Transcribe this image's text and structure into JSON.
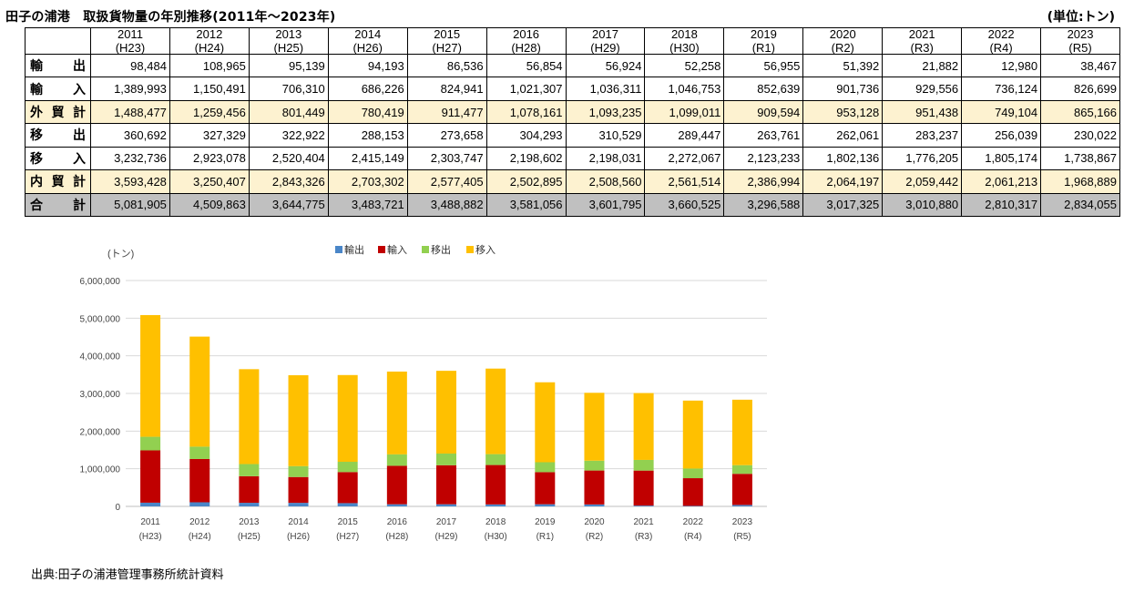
{
  "title": "田子の浦港　取扱貨物量の年別推移(2011年～2023年)",
  "unit": "(単位:トン)",
  "source": "出典:田子の浦港管理事務所統計資料",
  "table": {
    "years": [
      "2011",
      "2012",
      "2013",
      "2014",
      "2015",
      "2016",
      "2017",
      "2018",
      "2019",
      "2020",
      "2021",
      "2022",
      "2023"
    ],
    "eras": [
      "(H23)",
      "(H24)",
      "(H25)",
      "(H26)",
      "(H27)",
      "(H28)",
      "(H29)",
      "(H30)",
      "(R1)",
      "(R2)",
      "(R3)",
      "(R4)",
      "(R5)"
    ],
    "rows": [
      {
        "label": "輸出",
        "values": [
          "98,484",
          "108,965",
          "95,139",
          "94,193",
          "86,536",
          "56,854",
          "56,924",
          "52,258",
          "56,955",
          "51,392",
          "21,882",
          "12,980",
          "38,467"
        ]
      },
      {
        "label": "輸入",
        "values": [
          "1,389,993",
          "1,150,491",
          "706,310",
          "686,226",
          "824,941",
          "1,021,307",
          "1,036,311",
          "1,046,753",
          "852,639",
          "901,736",
          "929,556",
          "736,124",
          "826,699"
        ]
      },
      {
        "label": "外貿計",
        "values": [
          "1,488,477",
          "1,259,456",
          "801,449",
          "780,419",
          "911,477",
          "1,078,161",
          "1,093,235",
          "1,099,011",
          "909,594",
          "953,128",
          "951,438",
          "749,104",
          "865,166"
        ]
      },
      {
        "label": "移出",
        "values": [
          "360,692",
          "327,329",
          "322,922",
          "288,153",
          "273,658",
          "304,293",
          "310,529",
          "289,447",
          "263,761",
          "262,061",
          "283,237",
          "256,039",
          "230,022"
        ]
      },
      {
        "label": "移入",
        "values": [
          "3,232,736",
          "2,923,078",
          "2,520,404",
          "2,415,149",
          "2,303,747",
          "2,198,602",
          "2,198,031",
          "2,272,067",
          "2,123,233",
          "1,802,136",
          "1,776,205",
          "1,805,174",
          "1,738,867"
        ]
      },
      {
        "label": "内貿計",
        "values": [
          "3,593,428",
          "3,250,407",
          "2,843,326",
          "2,703,302",
          "2,577,405",
          "2,502,895",
          "2,508,560",
          "2,561,514",
          "2,386,994",
          "2,064,197",
          "2,059,442",
          "2,061,213",
          "1,968,889"
        ]
      },
      {
        "label": "合計",
        "values": [
          "5,081,905",
          "4,509,863",
          "3,644,775",
          "3,483,721",
          "3,488,882",
          "3,581,056",
          "3,601,795",
          "3,660,525",
          "3,296,588",
          "3,017,325",
          "3,010,880",
          "2,810,317",
          "2,834,055"
        ]
      }
    ]
  },
  "chart_data": {
    "type": "bar",
    "stacked": true,
    "ylabel": "(トン)",
    "ylim": [
      0,
      6000000
    ],
    "yticks": [
      "0",
      "1,000,000",
      "2,000,000",
      "3,000,000",
      "4,000,000",
      "5,000,000",
      "6,000,000"
    ],
    "categories": [
      "2011",
      "2012",
      "2013",
      "2014",
      "2015",
      "2016",
      "2017",
      "2018",
      "2019",
      "2020",
      "2021",
      "2022",
      "2023"
    ],
    "category_sublabels": [
      "(H23)",
      "(H24)",
      "(H25)",
      "(H26)",
      "(H27)",
      "(H28)",
      "(H29)",
      "(H30)",
      "(R1)",
      "(R2)",
      "(R3)",
      "(R4)",
      "(R5)"
    ],
    "legend_position": "top",
    "grid": true,
    "series": [
      {
        "name": "輸出",
        "color": "#4a86c8",
        "values": [
          98484,
          108965,
          95139,
          94193,
          86536,
          56854,
          56924,
          52258,
          56955,
          51392,
          21882,
          12980,
          38467
        ]
      },
      {
        "name": "輸入",
        "color": "#c00000",
        "values": [
          1389993,
          1150491,
          706310,
          686226,
          824941,
          1021307,
          1036311,
          1046753,
          852639,
          901736,
          929556,
          736124,
          826699
        ]
      },
      {
        "name": "移出",
        "color": "#92d050",
        "values": [
          360692,
          327329,
          322922,
          288153,
          273658,
          304293,
          310529,
          289447,
          263761,
          262061,
          283237,
          256039,
          230022
        ]
      },
      {
        "name": "移入",
        "color": "#ffc000",
        "values": [
          3232736,
          2923078,
          2520404,
          2415149,
          2303747,
          2198602,
          2198031,
          2272067,
          2123233,
          1802136,
          1776205,
          1805174,
          1738867
        ]
      }
    ]
  }
}
